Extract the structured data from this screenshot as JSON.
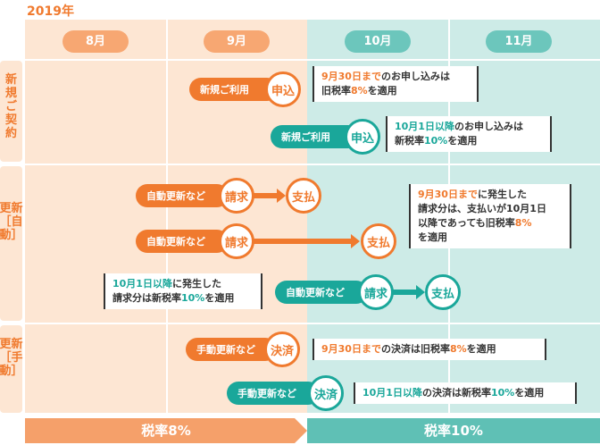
{
  "year": "2019年",
  "months": [
    "8月",
    "9月",
    "10月",
    "11月"
  ],
  "rows": {
    "new": "新規ご契約",
    "auto": "更新［自動］",
    "manual": "更新［手動］"
  },
  "flow": {
    "new_sept": {
      "label": "新規ご利用",
      "step": "申込"
    },
    "new_oct": {
      "label": "新規ご利用",
      "step": "申込"
    },
    "auto1": {
      "label": "自動更新など",
      "step1": "請求",
      "step2": "支払"
    },
    "auto2": {
      "label": "自動更新など",
      "step1": "請求",
      "step2": "支払"
    },
    "auto3": {
      "label": "自動更新など",
      "step1": "請求",
      "step2": "支払"
    },
    "manual_sept": {
      "label": "手動更新など",
      "step": "決済"
    },
    "manual_oct": {
      "label": "手動更新など",
      "step": "決済"
    }
  },
  "notes": {
    "new_sept": {
      "a": "9月30日まで",
      "b": "のお申し込みは",
      "c": "旧税率",
      "d": "8%",
      "e": "を適用"
    },
    "new_oct": {
      "a": "10月1日以降",
      "b": "のお申し込みは",
      "c": "新税率",
      "d": "10%",
      "e": "を適用"
    },
    "auto_sept": {
      "a": "9月30日まで",
      "b": "に発生した",
      "c": "請求分は、支払いが10月1日",
      "d": "以降であっても旧税率",
      "e": "8%",
      "f": "を適用"
    },
    "auto_oct": {
      "a": "10月1日以降",
      "b": "に発生した",
      "c": "請求分は新税率",
      "d": "10%",
      "e": "を適用"
    },
    "manual_sept": {
      "a": "9月30日まで",
      "b": "の決済は旧税率",
      "c": "8%",
      "d": "を適用"
    },
    "manual_oct": {
      "a": "10月1日以降",
      "b": "の決済は新税率",
      "c": "10%",
      "d": "を適用"
    }
  },
  "tax": {
    "old": "税率8%",
    "new": "税率10%"
  },
  "colors": {
    "orange": "#f07a2e",
    "teal": "#1aa79a",
    "orange_bg": "#fde6d3",
    "teal_bg": "#cdebe7"
  }
}
